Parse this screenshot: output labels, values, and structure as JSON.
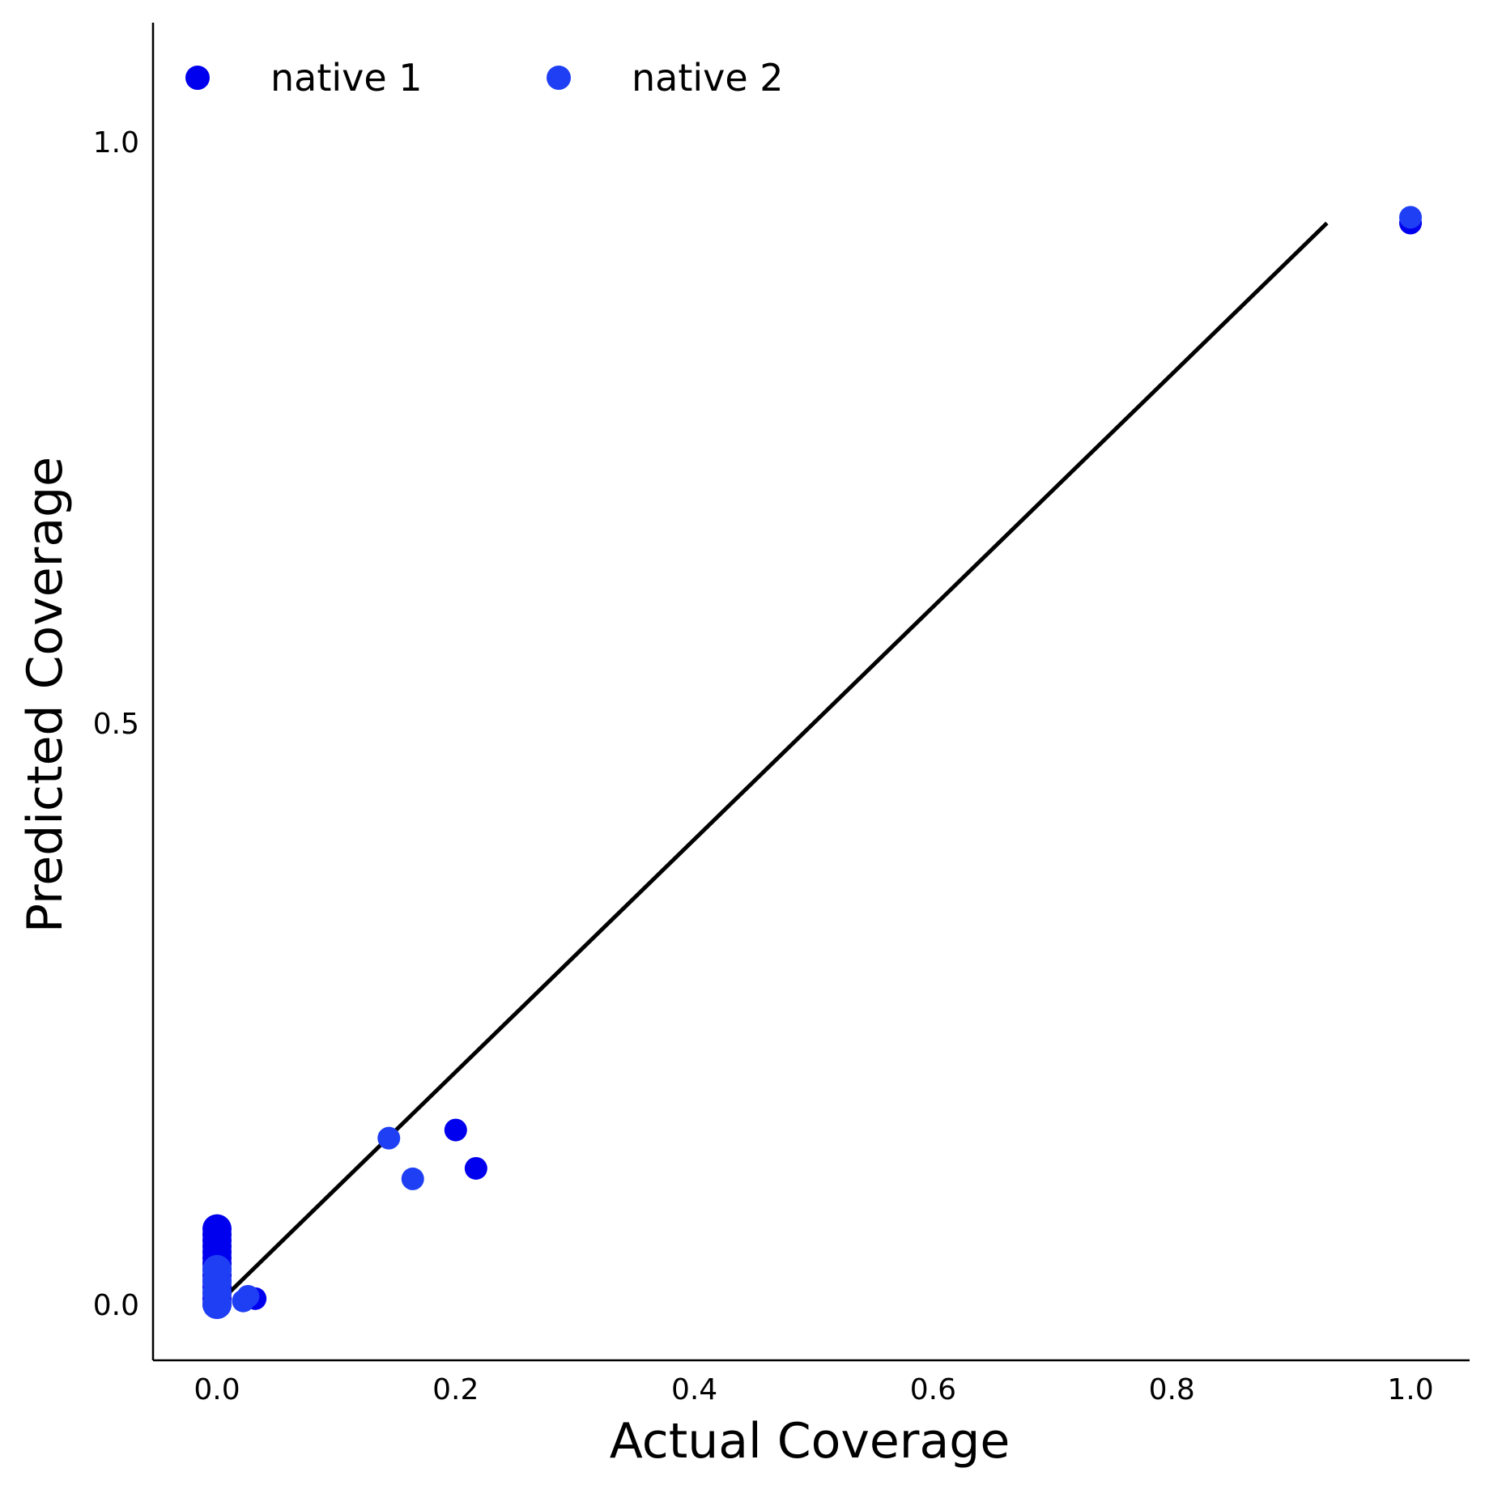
{
  "chart_data": {
    "type": "scatter",
    "xlabel": "Actual Coverage",
    "ylabel": "Predicted Coverage",
    "xlim": [
      -0.054,
      1.05
    ],
    "ylim": [
      -0.05,
      1.1
    ],
    "xticks": [
      "0.0",
      "0.2",
      "0.4",
      "0.6",
      "0.8",
      "1.0"
    ],
    "yticks": [
      "0.0",
      "0.5",
      "1.0"
    ],
    "legend_position": "top-left",
    "reference_line": {
      "x": [
        0.0,
        0.93
      ],
      "y": [
        0.0,
        0.93
      ],
      "color": "#000000"
    },
    "series": [
      {
        "name": "native 1",
        "color": "#0000ee",
        "points": [
          [
            0.0,
            0.0
          ],
          [
            0.0,
            0.005
          ],
          [
            0.0,
            0.01
          ],
          [
            0.0,
            0.015
          ],
          [
            0.0,
            0.02
          ],
          [
            0.0,
            0.025
          ],
          [
            0.0,
            0.03
          ],
          [
            0.0,
            0.035
          ],
          [
            0.0,
            0.04
          ],
          [
            0.0,
            0.045
          ],
          [
            0.0,
            0.05
          ],
          [
            0.0,
            0.055
          ],
          [
            0.0,
            0.06
          ],
          [
            0.0,
            0.065
          ],
          [
            0.032,
            0.005
          ],
          [
            0.2,
            0.15
          ],
          [
            0.217,
            0.117
          ],
          [
            1.0,
            0.93
          ]
        ]
      },
      {
        "name": "native 2",
        "color": "#1f3ff5",
        "points": [
          [
            0.0,
            0.0
          ],
          [
            0.0,
            0.01
          ],
          [
            0.0,
            0.02
          ],
          [
            0.0,
            0.03
          ],
          [
            0.022,
            0.003
          ],
          [
            0.026,
            0.007
          ],
          [
            0.144,
            0.143
          ],
          [
            0.164,
            0.108
          ],
          [
            1.0,
            0.935
          ]
        ]
      }
    ]
  }
}
